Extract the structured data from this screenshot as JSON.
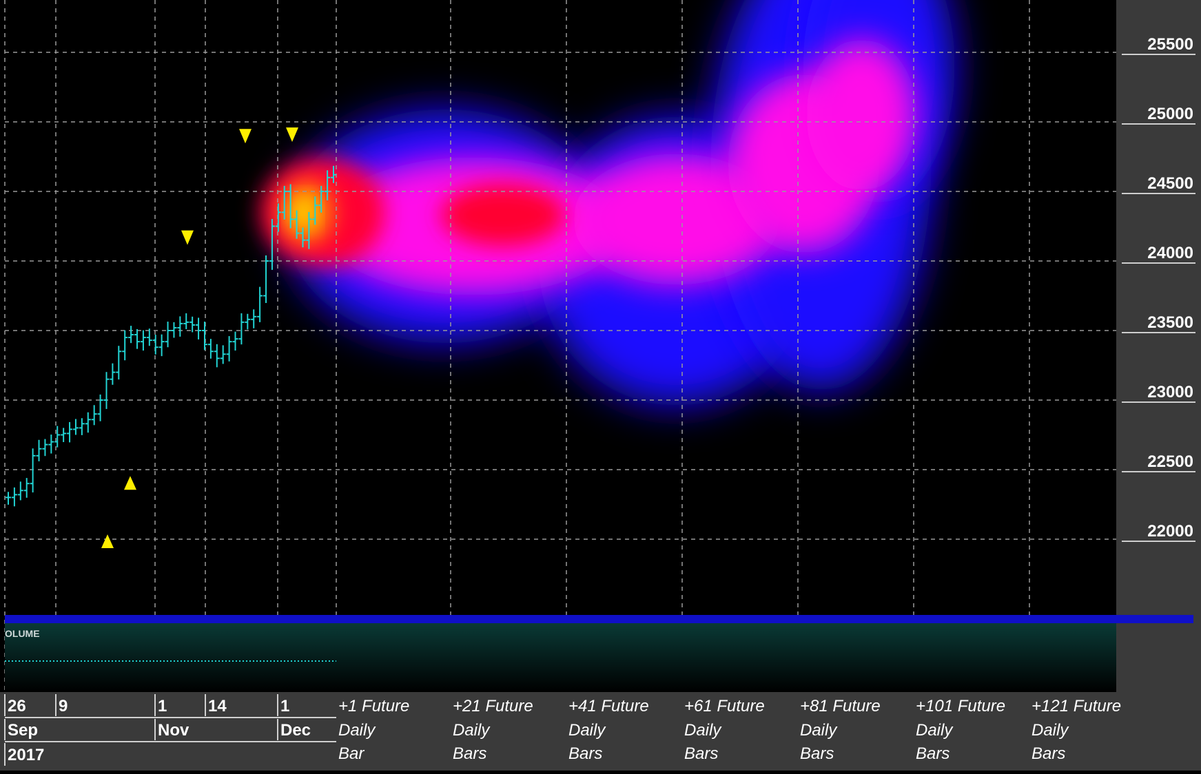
{
  "colors": {
    "background": "#000000",
    "axis_panel": "#3a3a3a",
    "grid": "#9a9a9a",
    "price_bars": "#22d4d4",
    "signal_markers": "#ffee00",
    "separator": "#1010c8",
    "volume_panel_top": "#0a3a36",
    "volume_panel_bottom": "#000000"
  },
  "volume_label": "OLUME",
  "chart_data": {
    "type": "heatmap",
    "title": "",
    "y_axis": {
      "ticks": [
        25500,
        25000,
        24500,
        24000,
        23500,
        23000,
        22500,
        22000
      ],
      "range": [
        21900,
        25900
      ],
      "grid": true,
      "position": "right"
    },
    "x_axis": {
      "date_row_1": [
        "26",
        "9",
        "1",
        "14",
        "1"
      ],
      "date_row_2": [
        "Sep",
        "Nov",
        "Dec"
      ],
      "date_row_3": [
        "2017"
      ],
      "future_labels": [
        {
          "line1": "+1 Future",
          "line2": "Daily",
          "line3": "Bar"
        },
        {
          "line1": "+21 Future",
          "line2": "Daily",
          "line3": "Bars"
        },
        {
          "line1": "+41 Future",
          "line2": "Daily",
          "line3": "Bars"
        },
        {
          "line1": "+61 Future",
          "line2": "Daily",
          "line3": "Bars"
        },
        {
          "line1": "+81 Future",
          "line2": "Daily",
          "line3": "Bars"
        },
        {
          "line1": "+101 Future",
          "line2": "Daily",
          "line3": "Bars"
        },
        {
          "line1": "+121 Future",
          "line2": "Daily",
          "line3": "Bars"
        }
      ]
    },
    "price_series": {
      "name": "",
      "close": [
        22300,
        22320,
        22350,
        22400,
        22600,
        22650,
        22680,
        22700,
        22750,
        22760,
        22790,
        22800,
        22830,
        22860,
        22900,
        23000,
        23150,
        23200,
        23350,
        23450,
        23470,
        23420,
        23450,
        23430,
        23380,
        23420,
        23500,
        23520,
        23550,
        23560,
        23540,
        23500,
        23400,
        23350,
        23300,
        23330,
        23420,
        23440,
        23560,
        23580,
        23600,
        23750,
        24000,
        24250,
        24350,
        24500,
        24300,
        24200,
        24150,
        24300,
        24400,
        24500,
        24600,
        24620
      ],
      "range_approx": [
        22200,
        24680
      ]
    },
    "signals": [
      {
        "type": "up",
        "price": 21980
      },
      {
        "type": "up",
        "price": 22400
      },
      {
        "type": "down",
        "price": 24170
      },
      {
        "type": "down",
        "price": 24900
      },
      {
        "type": "down",
        "price": 24910
      }
    ],
    "forecast_heatmap": {
      "horizon_bars": [
        1,
        21,
        41,
        61,
        81,
        101,
        121
      ],
      "center_price": [
        24350,
        24350,
        24300,
        24400,
        24800,
        25100,
        25300
      ],
      "core_intensity": [
        1.0,
        0.8,
        0.7,
        0.6,
        0.55,
        0.5,
        0.45
      ]
    }
  }
}
